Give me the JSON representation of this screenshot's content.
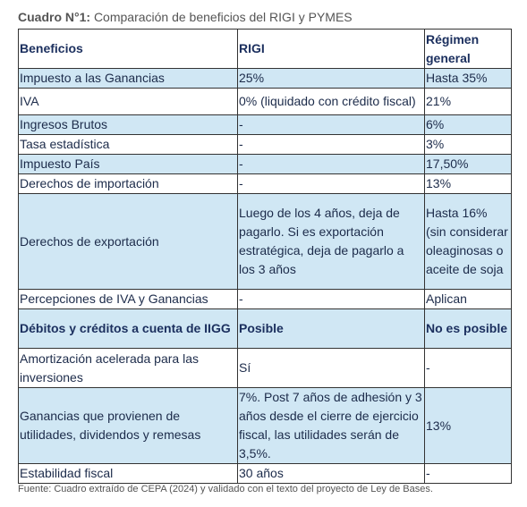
{
  "title": {
    "label": "Cuadro N°1:",
    "text": "Comparación de beneficios del RIGI y PYMES"
  },
  "table": {
    "header": [
      "Beneficios",
      "RIGI",
      "Régimen general"
    ],
    "rows": [
      [
        "Impuesto a las Ganancias",
        "25%",
        "Hasta 35%"
      ],
      [
        "IVA",
        "0% (liquidado con crédito fiscal)",
        "21%"
      ],
      [
        "Ingresos Brutos",
        "-",
        "6%"
      ],
      [
        "Tasa estadística",
        "-",
        "3%"
      ],
      [
        "Impuesto País",
        "-",
        "17,50%"
      ],
      [
        "Derechos de importación",
        "-",
        "13%"
      ],
      [
        "Derechos de exportación",
        "Luego de los 4 años, deja de pagarlo. Si es exportación estratégica, deja de pagarlo a los 3 años",
        "Hasta 16% (sin considerar oleaginosas o aceite de soja"
      ],
      [
        "Percepciones de IVA y Ganancias",
        "-",
        "Aplican"
      ],
      [
        "Débitos y créditos a cuenta de IIGG",
        "Posible",
        "No es posible"
      ],
      [
        "Amortización acelerada para las inversiones",
        "Sí",
        "-"
      ],
      [
        "Ganancias que provienen de utilidades, dividendos y remesas",
        "7%. Post 7 años de adhesión y 3 años desde el cierre de ejercicio fiscal, las utilidades serán de 3,5%.",
        "13%"
      ],
      [
        "Estabilidad fiscal",
        "30 años",
        "-"
      ]
    ]
  },
  "footnote": "Fuente: Cuadro extraído de CEPA (2024) y validado con el texto del proyecto de Ley de Bases."
}
